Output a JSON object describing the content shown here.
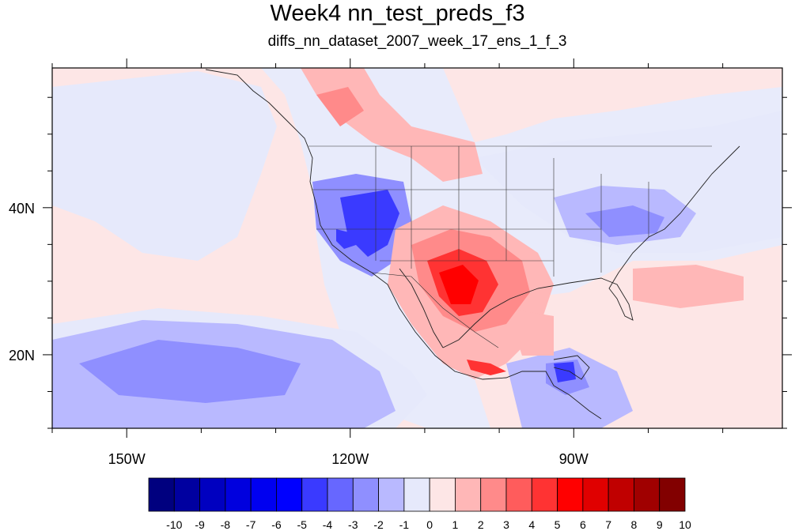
{
  "title": "Week4 nn_test_preds_f3",
  "subtitle": "diffs_nn_dataset_2007_week_17_ens_1_f_3",
  "map": {
    "lon_range": [
      -160,
      -62
    ],
    "lat_range": [
      10,
      59
    ],
    "x_ticks": [
      {
        "lon": -150,
        "label": "150W"
      },
      {
        "lon": -120,
        "label": "120W"
      },
      {
        "lon": -90,
        "label": "90W"
      }
    ],
    "y_ticks": [
      {
        "lat": 40,
        "label": "40N"
      },
      {
        "lat": 20,
        "label": "20N"
      }
    ],
    "background_color": "#e8ebfb"
  },
  "colorbar": {
    "labels": [
      "-10",
      "-9",
      "-8",
      "-7",
      "-6",
      "-5",
      "-4",
      "-3",
      "-2",
      "-1",
      "0",
      "1",
      "2",
      "3",
      "4",
      "5",
      "6",
      "7",
      "8",
      "9",
      "10"
    ],
    "colors": [
      "#00007f",
      "#0000a0",
      "#0000c0",
      "#0000de",
      "#0000f0",
      "#0000ff",
      "#3a3aff",
      "#6767ff",
      "#8f8fff",
      "#b9b9ff",
      "#e6e9fb",
      "#fde6e6",
      "#ffb7b7",
      "#ff8a8a",
      "#ff5c5c",
      "#ff3333",
      "#ff0000",
      "#e00000",
      "#c00000",
      "#a00000",
      "#820000"
    ]
  }
}
